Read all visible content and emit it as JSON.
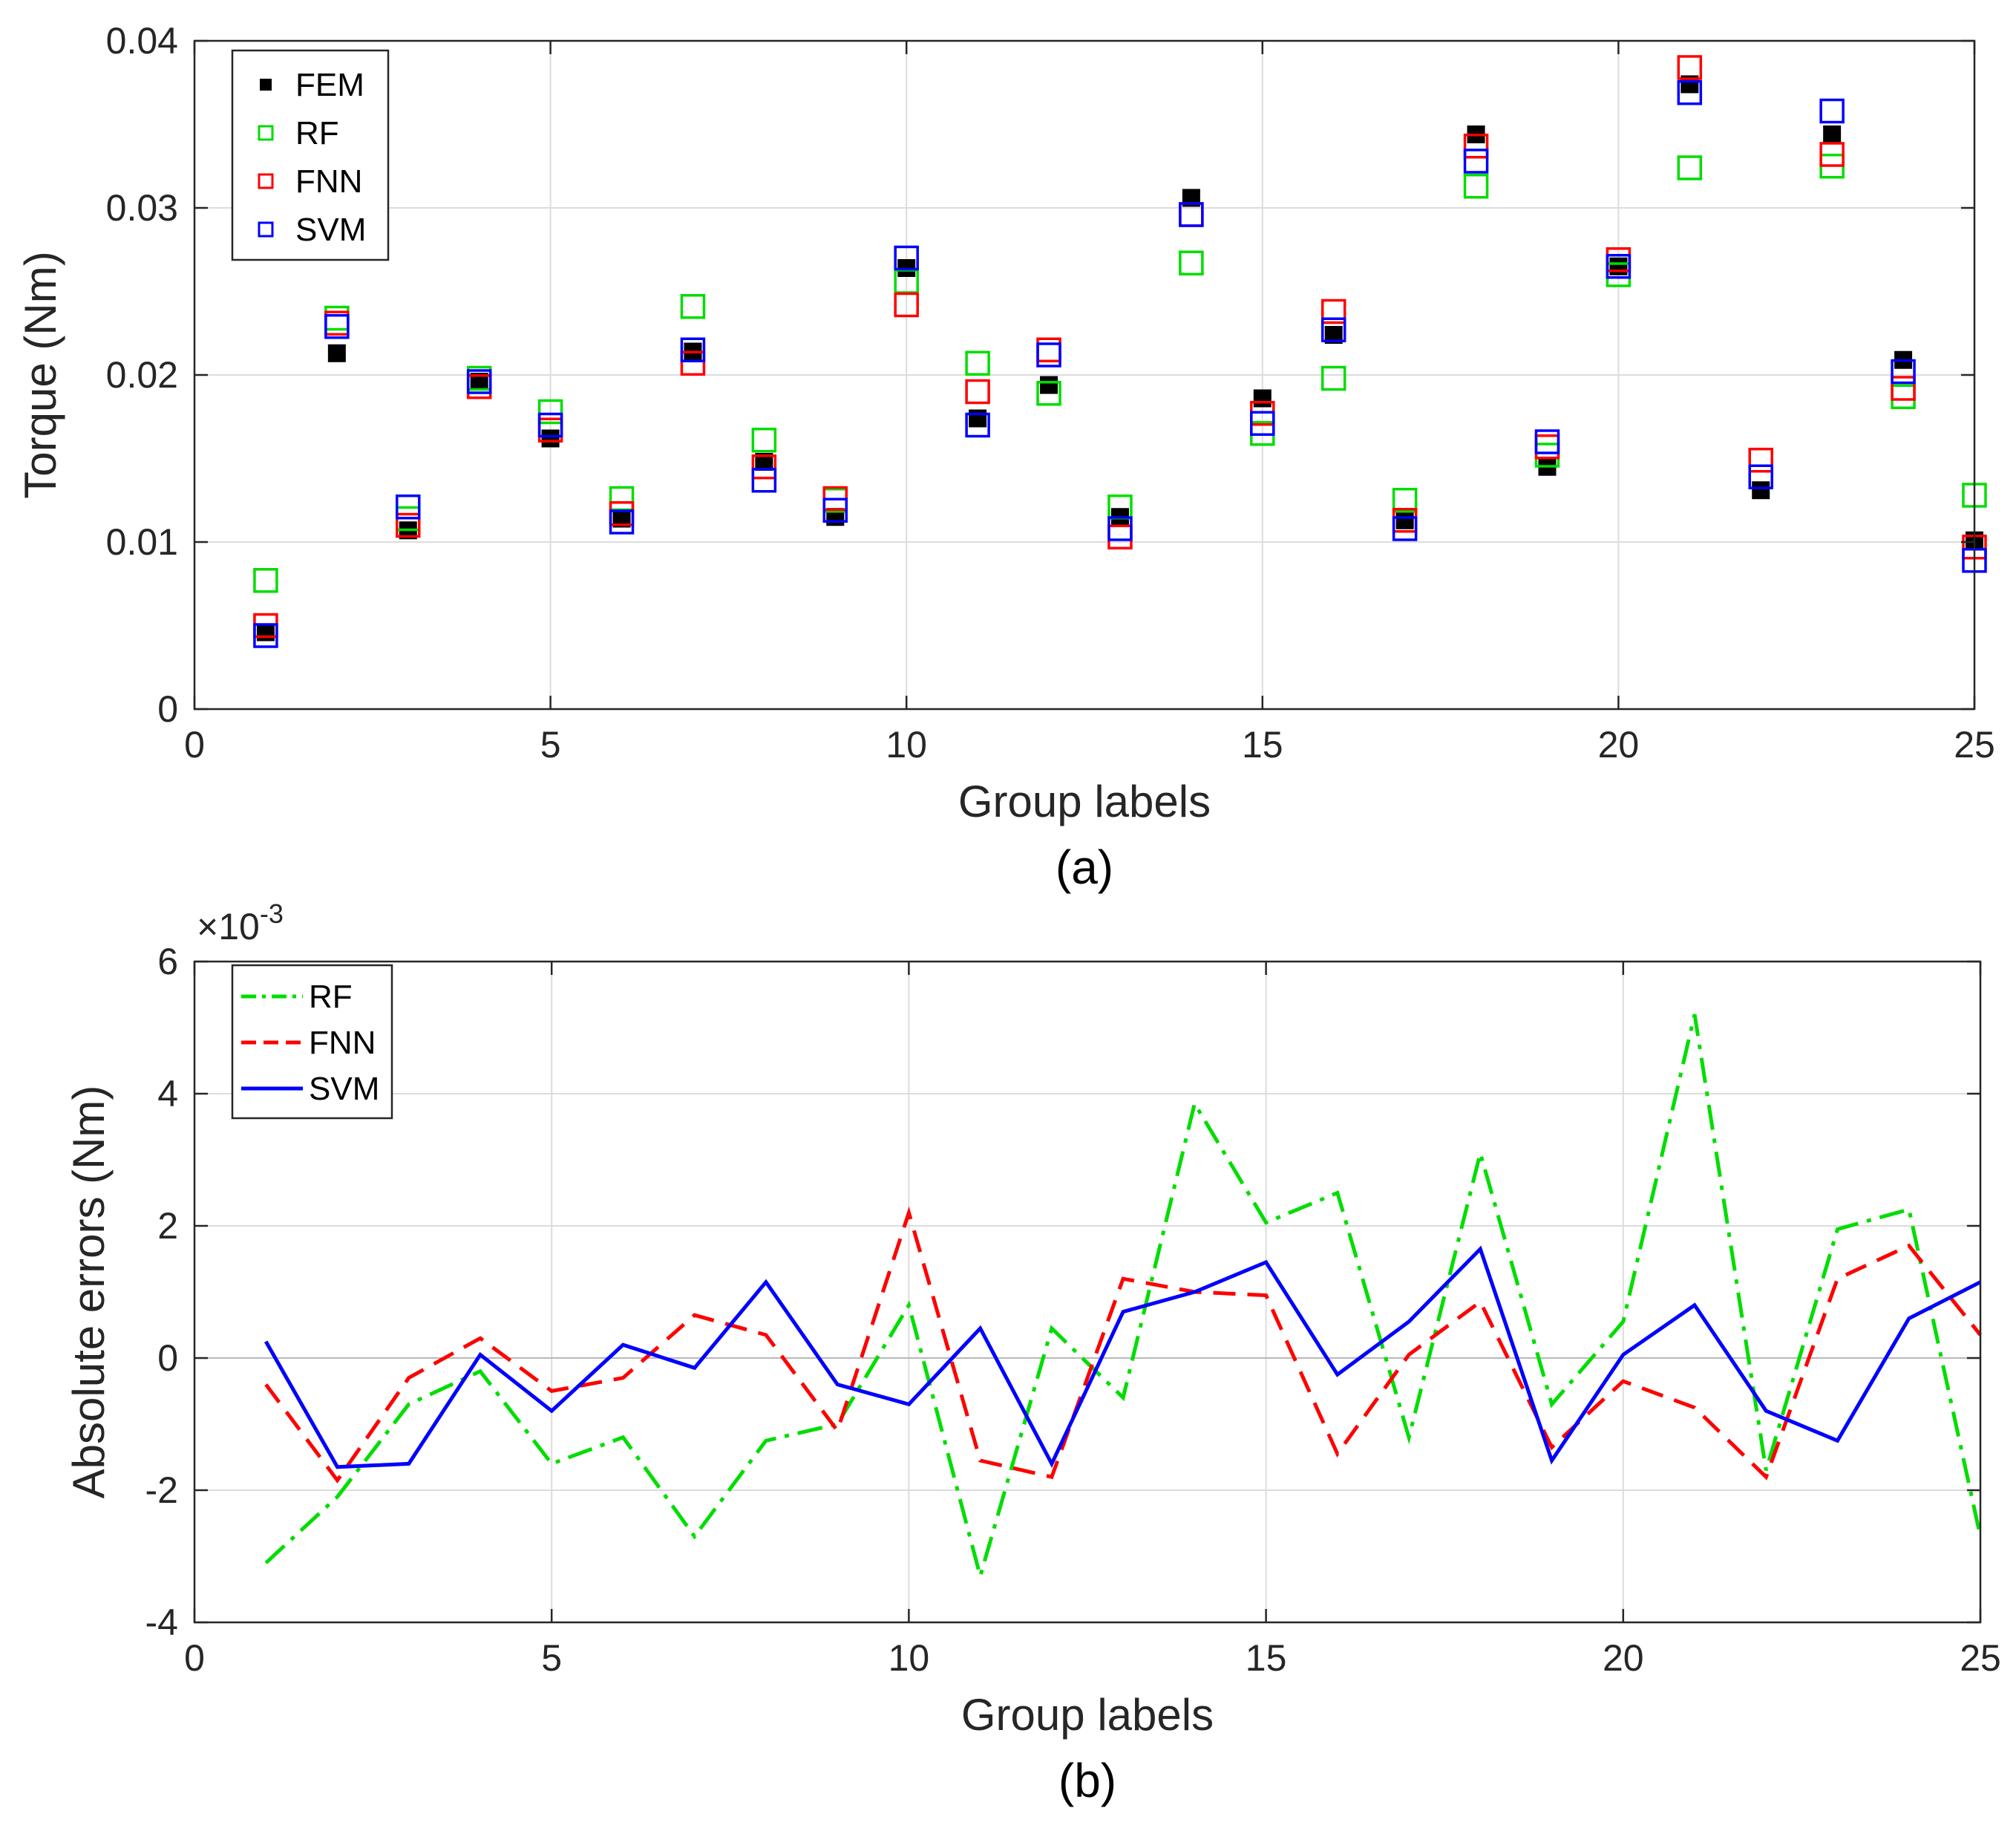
{
  "chart_data": [
    {
      "type": "scatter",
      "caption": "(a)",
      "xlabel": "Group labels",
      "ylabel": "Torque (Nm)",
      "xlim": [
        0,
        25
      ],
      "ylim": [
        0,
        0.04
      ],
      "xticks": [
        "0",
        "5",
        "10",
        "15",
        "20",
        "25"
      ],
      "yticks": [
        "0",
        "0.01",
        "0.02",
        "0.03",
        "0.04"
      ],
      "grid": true,
      "legend_position": "top-left",
      "x": [
        1,
        2,
        3,
        4,
        5,
        6,
        7,
        8,
        9,
        10,
        11,
        12,
        13,
        14,
        15,
        16,
        17,
        18,
        19,
        20,
        21,
        22,
        23,
        24,
        25
      ],
      "series": [
        {
          "name": "FEM",
          "color": "#000000",
          "marker": "filled-square",
          "values": [
            0.0046,
            0.0213,
            0.0107,
            0.0196,
            0.0162,
            0.0114,
            0.0214,
            0.0148,
            0.0115,
            0.0264,
            0.0174,
            0.0194,
            0.0115,
            0.0306,
            0.0186,
            0.0224,
            0.0113,
            0.0344,
            0.0145,
            0.0265,
            0.0374,
            0.0131,
            0.0344,
            0.0209,
            0.0101
          ]
        },
        {
          "name": "RF",
          "color": "#00dd00",
          "marker": "open-square",
          "values": [
            0.0077,
            0.0234,
            0.0114,
            0.0198,
            0.0178,
            0.0126,
            0.0241,
            0.0161,
            0.0125,
            0.0256,
            0.0207,
            0.0189,
            0.0121,
            0.0267,
            0.0165,
            0.0198,
            0.0125,
            0.0313,
            0.0152,
            0.026,
            0.0324,
            0.0149,
            0.0325,
            0.0187,
            0.0128
          ]
        },
        {
          "name": "FNN",
          "color": "#ff0000",
          "marker": "open-square",
          "values": [
            0.005,
            0.0231,
            0.011,
            0.0193,
            0.0167,
            0.0117,
            0.0207,
            0.0145,
            0.0126,
            0.0242,
            0.019,
            0.0215,
            0.0103,
            0.0296,
            0.0177,
            0.0238,
            0.0113,
            0.0337,
            0.0157,
            0.0269,
            0.0384,
            0.0149,
            0.0332,
            0.0192,
            0.0097
          ]
        },
        {
          "name": "SVM",
          "color": "#0000ff",
          "marker": "open-square",
          "values": [
            0.0044,
            0.0229,
            0.0121,
            0.0196,
            0.017,
            0.0112,
            0.0215,
            0.0137,
            0.0119,
            0.027,
            0.017,
            0.0212,
            0.0108,
            0.0296,
            0.0171,
            0.0227,
            0.0108,
            0.0328,
            0.016,
            0.0265,
            0.0369,
            0.0139,
            0.0358,
            0.0202,
            0.0089
          ]
        }
      ]
    },
    {
      "type": "line",
      "caption": "(b)",
      "xlabel": "Group labels",
      "ylabel": "Absolute errors (Nm)",
      "exponent_label": "×10",
      "exponent_power": "-3",
      "xlim": [
        0,
        25
      ],
      "ylim": [
        -4,
        6
      ],
      "xticks": [
        "0",
        "5",
        "10",
        "15",
        "20",
        "25"
      ],
      "yticks": [
        "-4",
        "-2",
        "0",
        "2",
        "4",
        "6"
      ],
      "grid": true,
      "legend_position": "top-left",
      "x": [
        1,
        2,
        3,
        4,
        5,
        6,
        7,
        8,
        9,
        10,
        11,
        12,
        13,
        14,
        15,
        16,
        17,
        18,
        19,
        20,
        21,
        22,
        23,
        24,
        25
      ],
      "series": [
        {
          "name": "RF",
          "color": "#00dd00",
          "line_style": "dash-dot",
          "values": [
            -3.1,
            -2.1,
            -0.7,
            -0.2,
            -1.6,
            -1.2,
            -2.7,
            -1.25,
            -1.0,
            0.8,
            -3.3,
            0.45,
            -0.6,
            3.85,
            2.05,
            2.5,
            -1.2,
            3.1,
            -0.7,
            0.55,
            5.2,
            -1.7,
            1.95,
            2.25,
            -2.7
          ]
        },
        {
          "name": "FNN",
          "color": "#ff0000",
          "line_style": "dashed",
          "values": [
            -0.4,
            -1.85,
            -0.3,
            0.3,
            -0.5,
            -0.3,
            0.65,
            0.35,
            -1.1,
            2.2,
            -1.55,
            -1.8,
            1.2,
            1.0,
            0.95,
            -1.45,
            0.05,
            0.85,
            -1.35,
            -0.35,
            -0.75,
            -1.8,
            1.2,
            1.7,
            0.35
          ]
        },
        {
          "name": "SVM",
          "color": "#0000ff",
          "line_style": "solid",
          "values": [
            0.25,
            -1.65,
            -1.6,
            0.05,
            -0.8,
            0.2,
            -0.15,
            1.15,
            -0.4,
            -0.7,
            0.45,
            -1.6,
            0.7,
            1.0,
            1.45,
            -0.25,
            0.55,
            1.65,
            -1.55,
            0.05,
            0.8,
            -0.8,
            -1.25,
            0.6,
            1.15
          ]
        }
      ]
    }
  ]
}
